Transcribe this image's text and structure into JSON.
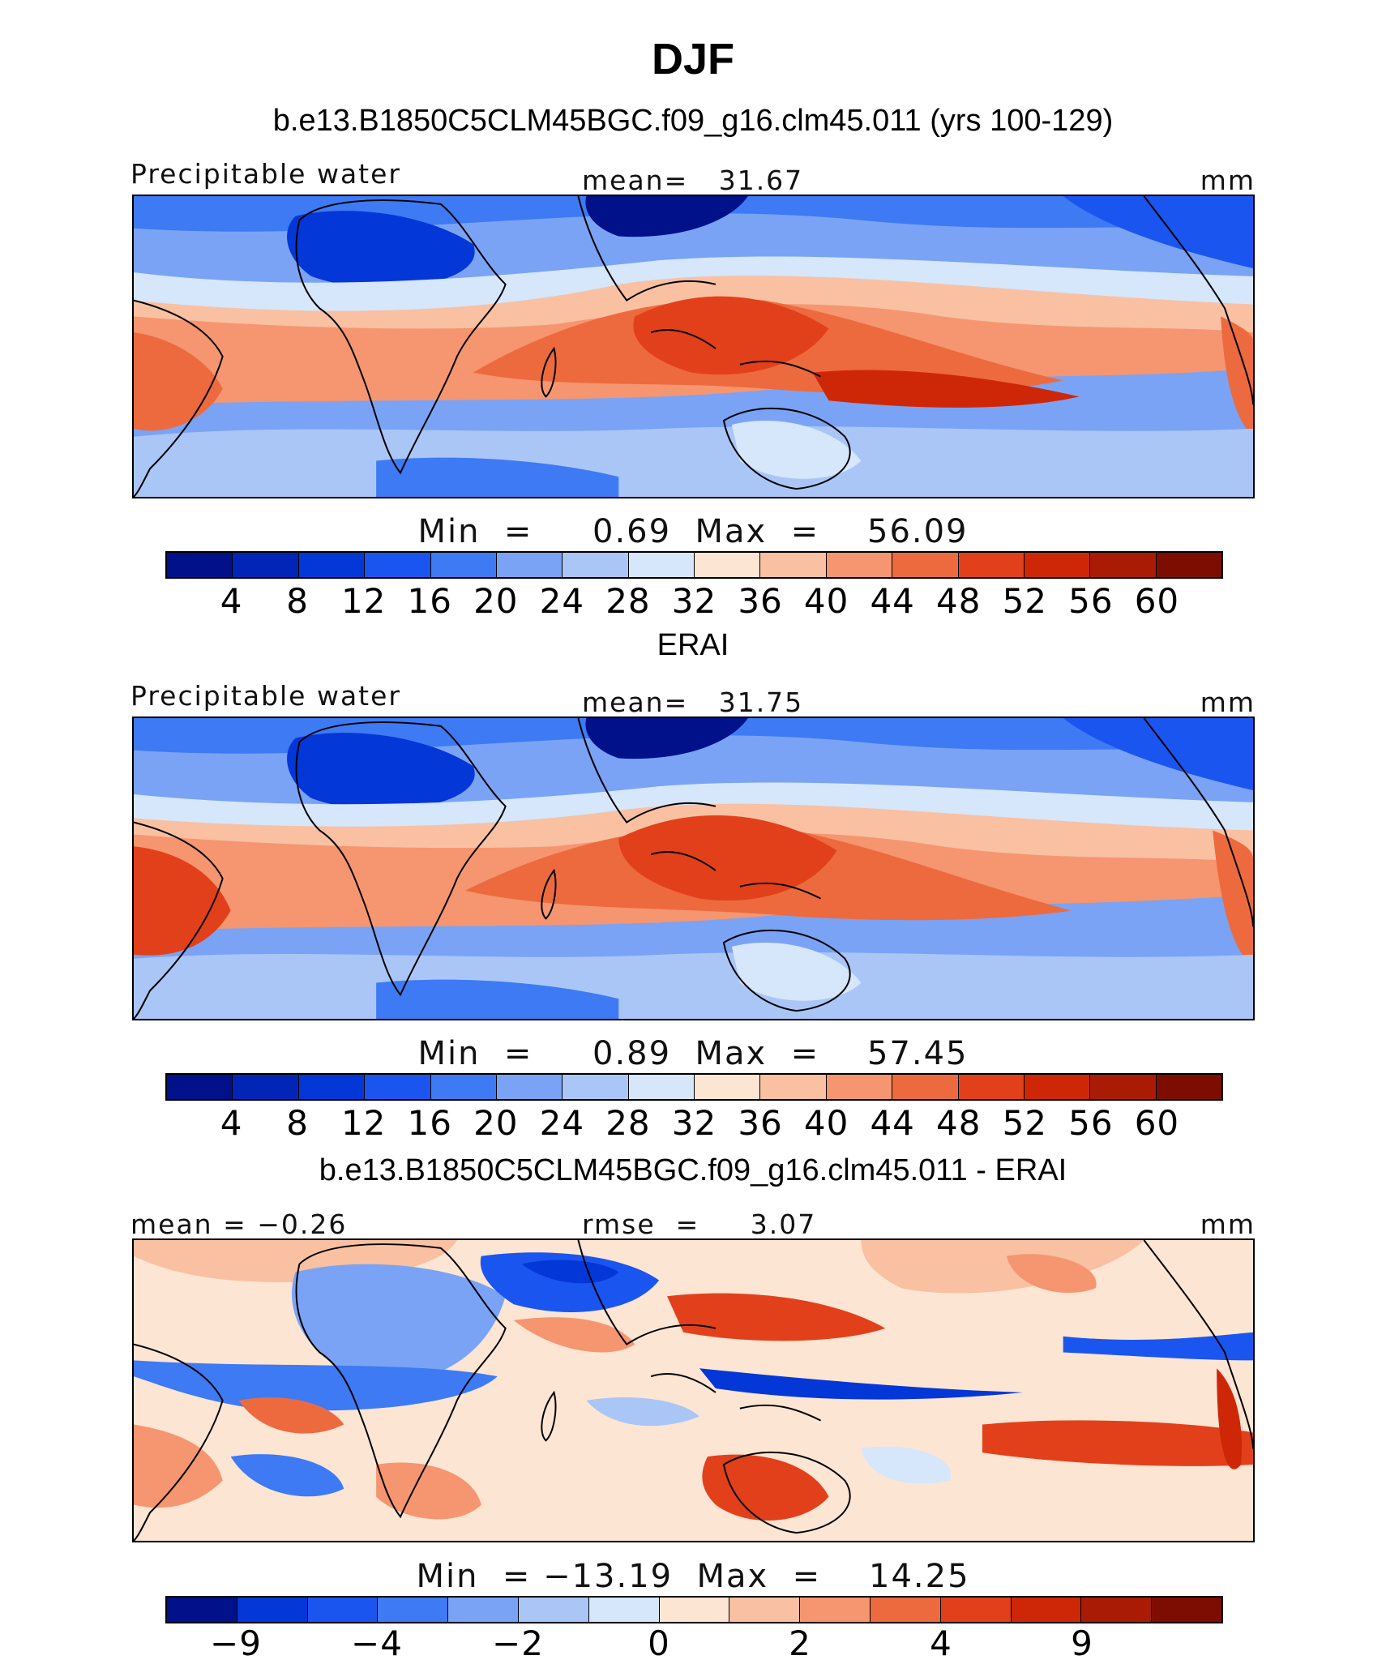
{
  "title": "DJF",
  "palette_abs": [
    "#00118a",
    "#0225b8",
    "#0437d8",
    "#1b55f0",
    "#3d7af4",
    "#7aa3f5",
    "#a9c6f7",
    "#d6e6fb",
    "#fde5d3",
    "#f9c0a2",
    "#f59670",
    "#ed6a3f",
    "#e2401b",
    "#ce2708",
    "#a91b04",
    "#7d0c01"
  ],
  "palette_diff": [
    "#00118a",
    "#0437d8",
    "#1b55f0",
    "#3d7af4",
    "#7aa3f5",
    "#a9c6f7",
    "#d6e6fb",
    "#fde5d3",
    "#f9c0a2",
    "#f59670",
    "#ed6a3f",
    "#e2401b",
    "#ce2708",
    "#a91b04",
    "#7d0c01"
  ],
  "panels": [
    {
      "title": "b.e13.B1850C5CLM45BGC.f09_g16.clm45.011 (yrs 100-129)",
      "left_label": "Precipitable water",
      "stat_label": "mean=   31.67",
      "units": "mm",
      "minmax": "Min  =     0.69  Max  =    56.09",
      "ticks": [
        "4",
        "8",
        "12",
        "16",
        "20",
        "24",
        "28",
        "32",
        "36",
        "40",
        "44",
        "48",
        "52",
        "56",
        "60"
      ]
    },
    {
      "title": "ERAI",
      "left_label": "Precipitable water",
      "stat_label": "mean=   31.75",
      "units": "mm",
      "minmax": "Min  =     0.89  Max  =    57.45",
      "ticks": [
        "4",
        "8",
        "12",
        "16",
        "20",
        "24",
        "28",
        "32",
        "36",
        "40",
        "44",
        "48",
        "52",
        "56",
        "60"
      ]
    },
    {
      "title": "b.e13.B1850C5CLM45BGC.f09_g16.clm45.011 - ERAI",
      "left_label": "mean  =   −0.26",
      "stat_label": "rmse  =     3.07",
      "units": "mm",
      "minmax": "Min  = −13.19  Max  =    14.25",
      "ticks": [
        "−9",
        "−4",
        "−2",
        "0",
        "2",
        "4",
        "9"
      ]
    }
  ]
}
